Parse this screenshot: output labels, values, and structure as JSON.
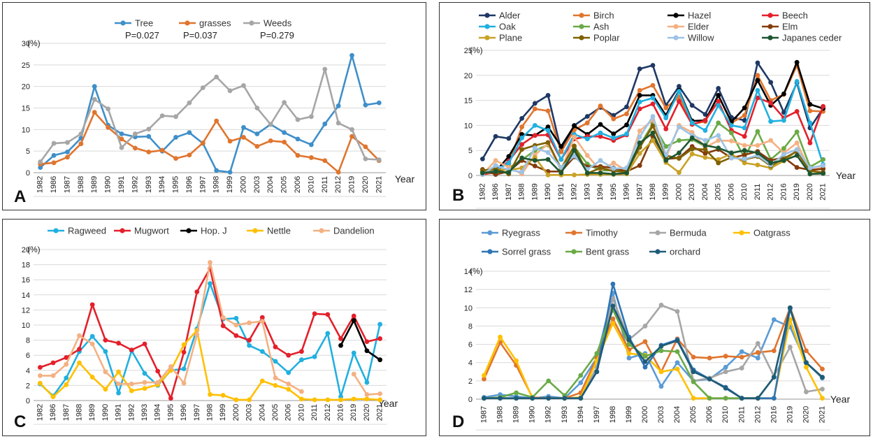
{
  "chart_data": [
    {
      "panel_label": "A",
      "type": "line",
      "categories": [
        "1982",
        "1986",
        "1987",
        "1988",
        "1989",
        "1990",
        "1991",
        "1992",
        "1993",
        "1994",
        "1995",
        "1996",
        "1997",
        "1998",
        "1999",
        "2000",
        "2003",
        "2004",
        "2005",
        "2006",
        "2010",
        "2011",
        "2012",
        "2019",
        "2020",
        "2021"
      ],
      "ylim": [
        0,
        30
      ],
      "yticks": [
        0,
        5,
        10,
        15,
        20,
        25,
        30
      ],
      "unit_label": "(%)",
      "xlabel": "Year",
      "legend_position": "top",
      "series": [
        {
          "name": "Tree",
          "color": "#3f8fc9",
          "values": [
            1.2,
            4,
            4.8,
            8,
            20,
            11,
            9,
            8.3,
            8.4,
            5,
            8.2,
            9.3,
            6.8,
            0.5,
            0.1,
            10.5,
            9,
            11.2,
            9.3,
            7.8,
            6.5,
            11.3,
            15.5,
            27.2,
            15.7,
            16.2
          ]
        },
        {
          "name": "grasses",
          "color": "#e0752e",
          "values": [
            2,
            2.3,
            3.6,
            6.7,
            14,
            10.5,
            7.8,
            5.7,
            4.8,
            5.2,
            3.3,
            4.1,
            6.9,
            12,
            7.3,
            8.2,
            6.1,
            7.4,
            7.1,
            4,
            3.5,
            2.8,
            0.1,
            8.4,
            6,
            2.8
          ]
        },
        {
          "name": "Weeds",
          "color": "#a6a6a6",
          "values": [
            2.5,
            6.8,
            7,
            9,
            17,
            14.8,
            5.8,
            9,
            10.1,
            13.2,
            13,
            16.2,
            19.7,
            22.2,
            19,
            20.2,
            15,
            11.2,
            16.3,
            12.3,
            13,
            24,
            11.5,
            10,
            3.2,
            3
          ]
        }
      ],
      "annotations": [
        {
          "text": "P=0.027"
        },
        {
          "text": "P=0.037"
        },
        {
          "text": "P=0.279"
        }
      ]
    },
    {
      "panel_label": "B",
      "type": "line",
      "categories": [
        "1982",
        "1986",
        "1987",
        "1988",
        "1989",
        "1990",
        "1991",
        "1992",
        "1993",
        "1994",
        "1995",
        "1996",
        "1997",
        "1998",
        "1999",
        "2000",
        "2003",
        "2004",
        "2005",
        "2006",
        "2010",
        "2011",
        "2012",
        "2016",
        "2019",
        "2020",
        "2021"
      ],
      "ylim": [
        0,
        25
      ],
      "yticks": [
        0,
        5,
        10,
        15,
        20,
        25
      ],
      "unit_label": "(%)",
      "xlabel": "Year",
      "legend_position": "top",
      "series": [
        {
          "name": "Alder",
          "color": "#1f3864",
          "values": [
            3.3,
            7.8,
            7.4,
            11.4,
            14.4,
            16,
            5,
            10,
            11.8,
            13.6,
            12,
            13.7,
            21.3,
            22,
            14,
            17.8,
            14,
            12.2,
            17.4,
            11.6,
            11,
            22.5,
            18.6,
            12.6,
            18.5,
            9.5,
            13.4
          ]
        },
        {
          "name": "Birch",
          "color": "#e0752e",
          "values": [
            0.2,
            1.4,
            2.3,
            9.7,
            13.3,
            12.9,
            4.7,
            9.1,
            10.5,
            13.9,
            11.3,
            12.3,
            17,
            18,
            13.5,
            15.7,
            10.3,
            10.8,
            16,
            10.5,
            12,
            20,
            15,
            16.2,
            22,
            12.9,
            12.8
          ]
        },
        {
          "name": "Hazel",
          "color": "#000000",
          "values": [
            0.5,
            0.8,
            3.8,
            8.2,
            8,
            9.7,
            5.8,
            9.9,
            8.2,
            10.2,
            8.3,
            10.1,
            16,
            16,
            12,
            17,
            10.9,
            11,
            16,
            10.7,
            13.5,
            19,
            14,
            16.3,
            22.6,
            14.2,
            13.4
          ]
        },
        {
          "name": "Beech",
          "color": "#e3202b",
          "values": [
            0.2,
            0.6,
            2.9,
            6.2,
            8,
            8.1,
            3.2,
            7.3,
            7.8,
            7.8,
            7,
            8.1,
            13.3,
            14.3,
            9.3,
            14.8,
            10.2,
            11,
            14.8,
            9,
            7.8,
            15.5,
            14.5,
            11.5,
            12.8,
            6.5,
            13.8
          ]
        },
        {
          "name": "Oak",
          "color": "#21b0e0",
          "values": [
            0.6,
            1.1,
            2.5,
            7.5,
            10,
            9,
            3.2,
            8.2,
            7.3,
            8.5,
            7.5,
            8.3,
            14.7,
            15.5,
            11.5,
            16.8,
            10.5,
            9,
            14,
            10,
            9.5,
            17,
            10.8,
            11,
            18.8,
            10.5,
            2.2
          ]
        },
        {
          "name": "Ash",
          "color": "#6aaa46",
          "values": [
            0.6,
            0.5,
            1.5,
            3.1,
            5,
            6.1,
            1.5,
            5.7,
            2.3,
            1,
            1,
            1.5,
            6,
            10.3,
            5.8,
            7,
            7.2,
            5.8,
            10.5,
            8.5,
            3.5,
            8.8,
            3.2,
            5.4,
            8.7,
            1.7,
            3.2
          ]
        },
        {
          "name": "Elder",
          "color": "#f4b183",
          "values": [
            0.2,
            3,
            1.6,
            0.3,
            4.1,
            6.3,
            1,
            7.7,
            4,
            1,
            2.5,
            1,
            8.9,
            11.1,
            3.5,
            10,
            8.6,
            5.6,
            7,
            6.9,
            6,
            6,
            7,
            4.5,
            6.5,
            1,
            1.6
          ]
        },
        {
          "name": "Elm",
          "color": "#843c0c",
          "values": [
            1.2,
            0.2,
            0.8,
            3,
            1.9,
            0.8,
            0.8,
            3.7,
            1.7,
            1.8,
            1.5,
            0.8,
            2,
            7.8,
            3.3,
            3.5,
            5.8,
            4.4,
            5.2,
            3.5,
            4.1,
            4.8,
            3,
            3.6,
            1.6,
            1.1,
            1.3
          ]
        },
        {
          "name": "Plane",
          "color": "#c9a227",
          "values": [
            0.9,
            1.2,
            1.1,
            1.5,
            3.6,
            0.1,
            0.1,
            0.1,
            0.2,
            0.2,
            0.2,
            0.3,
            4.4,
            7,
            2.6,
            0.6,
            4.3,
            3.6,
            3.2,
            4.3,
            2.5,
            2.1,
            1.5,
            2.9,
            5,
            0.3,
            0.4
          ]
        },
        {
          "name": "Poplar",
          "color": "#7f6000",
          "values": [
            1,
            1.3,
            0.3,
            5.2,
            6,
            6.6,
            1.3,
            5.9,
            0.4,
            1.5,
            0.9,
            0.7,
            5.6,
            9.9,
            4,
            3.4,
            5.3,
            5.2,
            2.5,
            3.6,
            3.2,
            3.8,
            1.9,
            3.4,
            4.8,
            0.9,
            0.6
          ]
        },
        {
          "name": "Willow",
          "color": "#9dc3e6",
          "values": [
            0.2,
            2,
            1.1,
            0.7,
            5.5,
            4.6,
            1.6,
            3.9,
            1.2,
            3,
            1.4,
            1.5,
            7.7,
            11.8,
            4.1,
            9.7,
            8,
            7,
            8,
            3.5,
            3.3,
            4,
            2.1,
            4.2,
            5.2,
            1.5,
            2
          ]
        },
        {
          "name": "Japanes ceder",
          "color": "#1e5631",
          "values": [
            0.5,
            0.8,
            0.6,
            3.5,
            3,
            3.2,
            0.5,
            5,
            0.5,
            0.5,
            0.3,
            0.5,
            6.5,
            8.5,
            3,
            4.5,
            7.5,
            6,
            5.5,
            4.5,
            5,
            4.5,
            2.5,
            3,
            4,
            0.3,
            0.4
          ]
        }
      ]
    },
    {
      "panel_label": "C",
      "type": "line",
      "categories": [
        "1982",
        "1986",
        "1987",
        "1988",
        "1989",
        "1990",
        "1991",
        "1992",
        "1993",
        "1994",
        "1995",
        "1996",
        "1997",
        "1998",
        "1999",
        "2000",
        "2003",
        "2004",
        "2005",
        "2006",
        "2010",
        "2011",
        "2012",
        "2016",
        "2019",
        "2020",
        "2021"
      ],
      "ylim": [
        0,
        20
      ],
      "yticks": [
        0,
        2,
        4,
        6,
        8,
        10,
        12,
        14,
        16,
        18,
        20
      ],
      "unit_label": "(%)",
      "xlabel": "Year",
      "legend_position": "top",
      "series": [
        {
          "name": "Ragweed",
          "color": "#21b0e0",
          "values": [
            2.2,
            0.6,
            3,
            6.5,
            8.5,
            6.5,
            1,
            6.6,
            3.6,
            2,
            4,
            4.2,
            9.5,
            15.5,
            10.8,
            10.9,
            7.3,
            6.5,
            5.2,
            3.7,
            5.4,
            5.8,
            8.9,
            0.5,
            6.3,
            2.4,
            10.1
          ]
        },
        {
          "name": "Mugwort",
          "color": "#e3202b",
          "values": [
            4.4,
            5,
            5.7,
            6.8,
            12.7,
            8,
            7.6,
            6.7,
            7.5,
            3.9,
            0.3,
            6.4,
            14.4,
            17.5,
            9.9,
            8.6,
            8,
            11,
            7.1,
            6,
            6.5,
            11.5,
            11.4,
            8.2,
            11.2,
            7.8,
            8.2
          ]
        },
        {
          "name": "Hop. J",
          "color": "#000000",
          "values": [
            null,
            null,
            null,
            null,
            null,
            null,
            null,
            null,
            null,
            null,
            null,
            null,
            null,
            null,
            null,
            null,
            null,
            null,
            null,
            null,
            null,
            null,
            null,
            7.3,
            10.6,
            6.6,
            5.4
          ]
        },
        {
          "name": "Nettle",
          "color": "#ffc000",
          "values": [
            2.3,
            0.5,
            2.1,
            5,
            3.1,
            1.5,
            3.8,
            1.3,
            1.6,
            2.1,
            4,
            7.4,
            9.3,
            0.8,
            0.7,
            0.1,
            0.1,
            2.6,
            2,
            1.5,
            0.2,
            0.1,
            0.1,
            0.1,
            0.2,
            0.2,
            0.1
          ]
        },
        {
          "name": "Dandelion",
          "color": "#f4b183",
          "values": [
            3.3,
            3.3,
            4.8,
            8.6,
            7.5,
            3.8,
            2.2,
            2.2,
            2.4,
            2.4,
            4.5,
            2.3,
            8.7,
            18.3,
            11,
            10,
            10.3,
            10.5,
            3,
            2.2,
            1.2,
            null,
            null,
            null,
            3.5,
            0.8,
            0.9
          ]
        }
      ]
    },
    {
      "panel_label": "D",
      "type": "line",
      "categories": [
        "1987",
        "1988",
        "1989",
        "1990",
        "1992",
        "1993",
        "1994",
        "1997",
        "1998",
        "1999",
        "2000",
        "2003",
        "2004",
        "2005",
        "2006",
        "2010",
        "2011",
        "2012",
        "2016",
        "2019",
        "2020",
        "2021"
      ],
      "ylim": [
        0,
        14
      ],
      "yticks": [
        0,
        2,
        4,
        6,
        8,
        10,
        12,
        14
      ],
      "unit_label": "(%)",
      "xlabel": "Year",
      "legend_position": "top",
      "series": [
        {
          "name": "Ryegrass",
          "color": "#5b9bd5",
          "values": [
            0.2,
            0.5,
            0.3,
            0.1,
            0.3,
            0.1,
            1.8,
            4.5,
            11.6,
            4.5,
            5,
            1.4,
            4,
            2,
            2.2,
            3.5,
            5.2,
            4.5,
            8.7,
            7.9,
            4,
            2.3
          ]
        },
        {
          "name": "Timothy",
          "color": "#e0752e",
          "values": [
            2.2,
            6.2,
            3.7,
            0.2,
            0.1,
            0.1,
            0.7,
            4.5,
            8.8,
            5.4,
            6.3,
            3,
            6.6,
            4.6,
            4.5,
            4.7,
            4.6,
            5.1,
            5.3,
            10,
            5.3,
            3.3
          ]
        },
        {
          "name": "Bermuda",
          "color": "#a6a6a6",
          "values": [
            0.1,
            0.1,
            0.1,
            0.1,
            0.1,
            0.1,
            0.1,
            3.5,
            11,
            6.5,
            8,
            10.3,
            9.6,
            2,
            2.3,
            3,
            3.4,
            6.1,
            2.5,
            5.7,
            0.8,
            1.1
          ]
        },
        {
          "name": "Oatgrass",
          "color": "#ffc000",
          "values": [
            2.6,
            6.8,
            4.2,
            0.1,
            0.1,
            0.1,
            0.2,
            4.2,
            8.3,
            5,
            4.8,
            3,
            3.3,
            0.1,
            0.1,
            0.1,
            0.1,
            0.1,
            0.1,
            8.7,
            3.5,
            0.1
          ]
        },
        {
          "name": "Sorrel grass",
          "color": "#2e75b6",
          "values": [
            0.1,
            0.1,
            0.1,
            0.1,
            0.1,
            0.1,
            0.1,
            3,
            12.6,
            6.8,
            3.5,
            5.9,
            6.5,
            3.2,
            2.2,
            1.3,
            0.1,
            0.1,
            0.1,
            9.9,
            4,
            2.4
          ]
        },
        {
          "name": "Bent grass",
          "color": "#6aaa46",
          "values": [
            0.1,
            0.2,
            0.7,
            0.2,
            2,
            0.4,
            2.6,
            5,
            9.8,
            6,
            4.7,
            5.3,
            5.2,
            1.9,
            0.1,
            0.1,
            0.1,
            0.1,
            2.4,
            10,
            4,
            2.4
          ]
        },
        {
          "name": "orchard",
          "color": "#1f5c78",
          "values": [
            0.1,
            0.1,
            0.1,
            0.1,
            0.1,
            0.1,
            0.1,
            3,
            10.2,
            6.5,
            4.1,
            5.8,
            6.4,
            3,
            2.2,
            1.2,
            0.1,
            0.1,
            2.4,
            10,
            4,
            2.4
          ]
        }
      ]
    }
  ]
}
